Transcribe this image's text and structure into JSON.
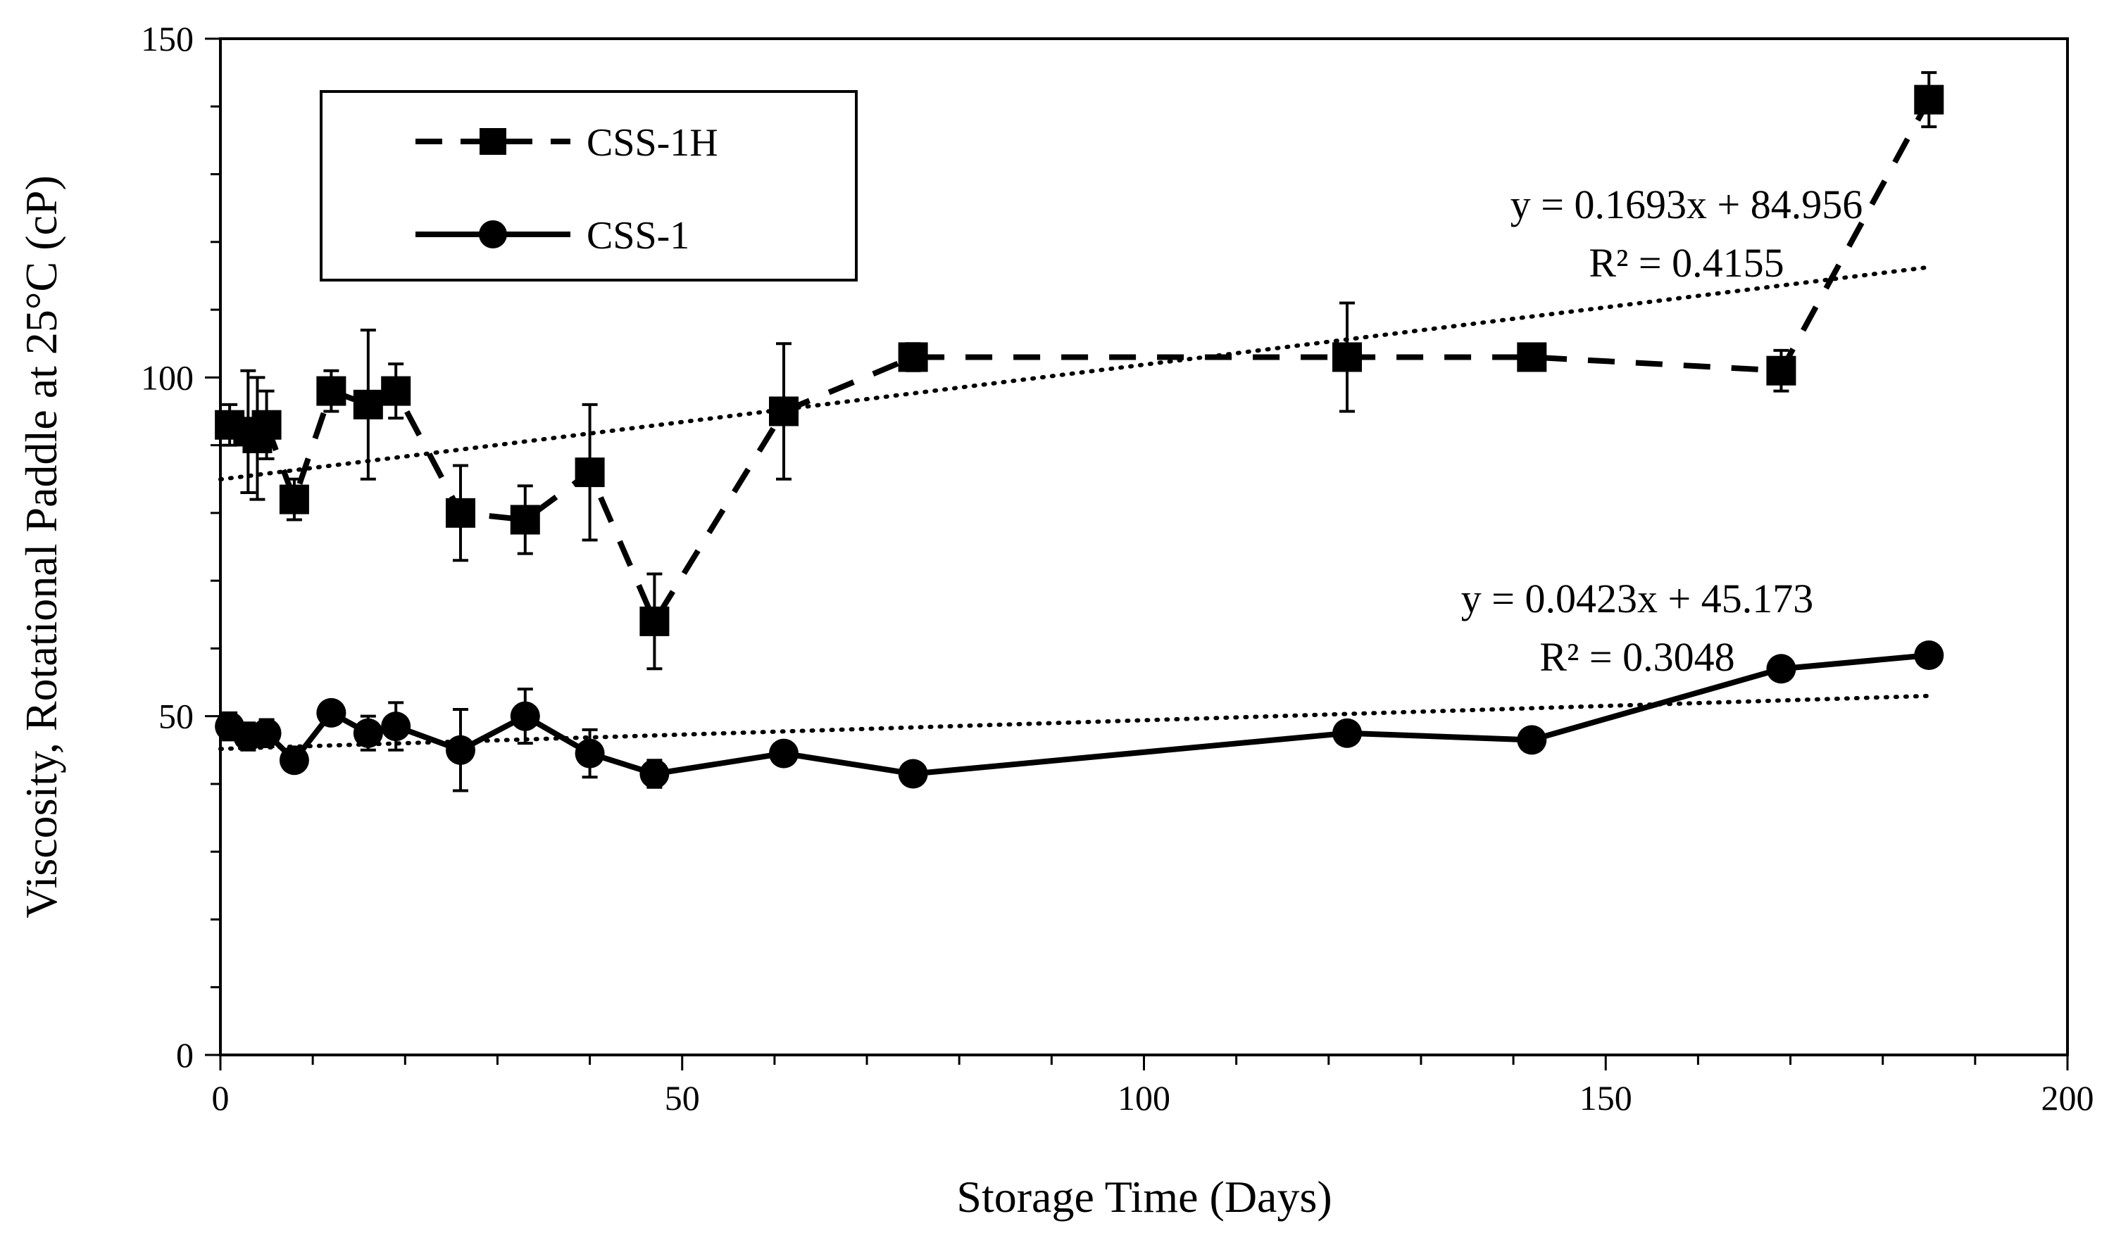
{
  "chart_data": {
    "type": "line",
    "title": "",
    "xlabel": "Storage Time (Days)",
    "ylabel": "Viscosity, Rotational Paddle at 25°C (cP)",
    "xlim": [
      0,
      200
    ],
    "ylim": [
      0,
      150
    ],
    "xticks": [
      0,
      50,
      100,
      150,
      200
    ],
    "yticks": [
      0,
      50,
      100,
      150
    ],
    "x_minor_step": 10,
    "y_minor_step": 10,
    "grid": false,
    "legend_position": "top-left",
    "series": [
      {
        "name": "CSS-1H",
        "line_style": "dashed",
        "marker": "square",
        "x": [
          1,
          3,
          4,
          5,
          8,
          12,
          16,
          19,
          26,
          33,
          40,
          47,
          61,
          75,
          122,
          142,
          169,
          185
        ],
        "y": [
          93,
          92,
          91,
          93,
          82,
          98,
          96,
          98,
          80,
          79,
          86,
          64,
          95,
          103,
          103,
          103,
          101,
          141
        ],
        "error": [
          3,
          9,
          9,
          5,
          3,
          3,
          11,
          4,
          7,
          5,
          10,
          7,
          10,
          2,
          8,
          1,
          3,
          4
        ]
      },
      {
        "name": "CSS-1",
        "line_style": "solid",
        "marker": "circle",
        "x": [
          1,
          3,
          5,
          8,
          12,
          16,
          19,
          26,
          33,
          40,
          47,
          61,
          75,
          122,
          142,
          169,
          185
        ],
        "y": [
          48.5,
          47,
          47.5,
          43.5,
          50.5,
          47.5,
          48.5,
          45,
          50,
          44.5,
          41.5,
          44.5,
          41.5,
          47.5,
          46.5,
          57,
          59
        ],
        "error": [
          2,
          2,
          2,
          1,
          1.5,
          2.5,
          3.5,
          6,
          4,
          3.5,
          2,
          0.5,
          0.5,
          1.5,
          0.5,
          0.5,
          0.5
        ]
      }
    ],
    "trendlines": [
      {
        "series": "CSS-1H",
        "slope": 0.1693,
        "intercept": 84.956,
        "x_range": [
          0,
          185
        ],
        "equation": "y = 0.1693x + 84.956",
        "r2_label": "R² = 0.4155"
      },
      {
        "series": "CSS-1",
        "slope": 0.0423,
        "intercept": 45.173,
        "x_range": [
          0,
          185
        ],
        "equation": "y = 0.0423x + 45.173",
        "r2_label": "R² = 0.3048"
      }
    ]
  }
}
